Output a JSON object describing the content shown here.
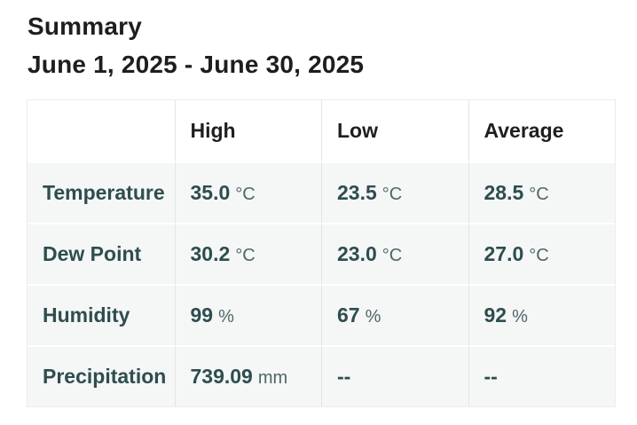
{
  "colors": {
    "heading_text": "#1e1e1e",
    "label_text": "#2e4d4f",
    "value_text": "#2e4d4f",
    "unit_text": "#4f6668",
    "row_background": "#f5f6f6",
    "header_background": "#ffffff",
    "grid_line": "#e4e4e4"
  },
  "header": {
    "title": "Summary",
    "date_range": "June 1, 2025 - June 30, 2025"
  },
  "table": {
    "columns": [
      "",
      "High",
      "Low",
      "Average"
    ],
    "rows": [
      {
        "label": "Temperature",
        "cells": [
          {
            "value": "35.0",
            "unit": "°C"
          },
          {
            "value": "23.5",
            "unit": "°C"
          },
          {
            "value": "28.5",
            "unit": "°C"
          }
        ]
      },
      {
        "label": "Dew Point",
        "cells": [
          {
            "value": "30.2",
            "unit": "°C"
          },
          {
            "value": "23.0",
            "unit": "°C"
          },
          {
            "value": "27.0",
            "unit": "°C"
          }
        ]
      },
      {
        "label": "Humidity",
        "cells": [
          {
            "value": "99",
            "unit": "%"
          },
          {
            "value": "67",
            "unit": "%"
          },
          {
            "value": "92",
            "unit": "%"
          }
        ]
      },
      {
        "label": "Precipitation",
        "cells": [
          {
            "value": "739.09",
            "unit": "mm"
          },
          {
            "value": "--",
            "unit": ""
          },
          {
            "value": "--",
            "unit": ""
          }
        ]
      }
    ]
  }
}
